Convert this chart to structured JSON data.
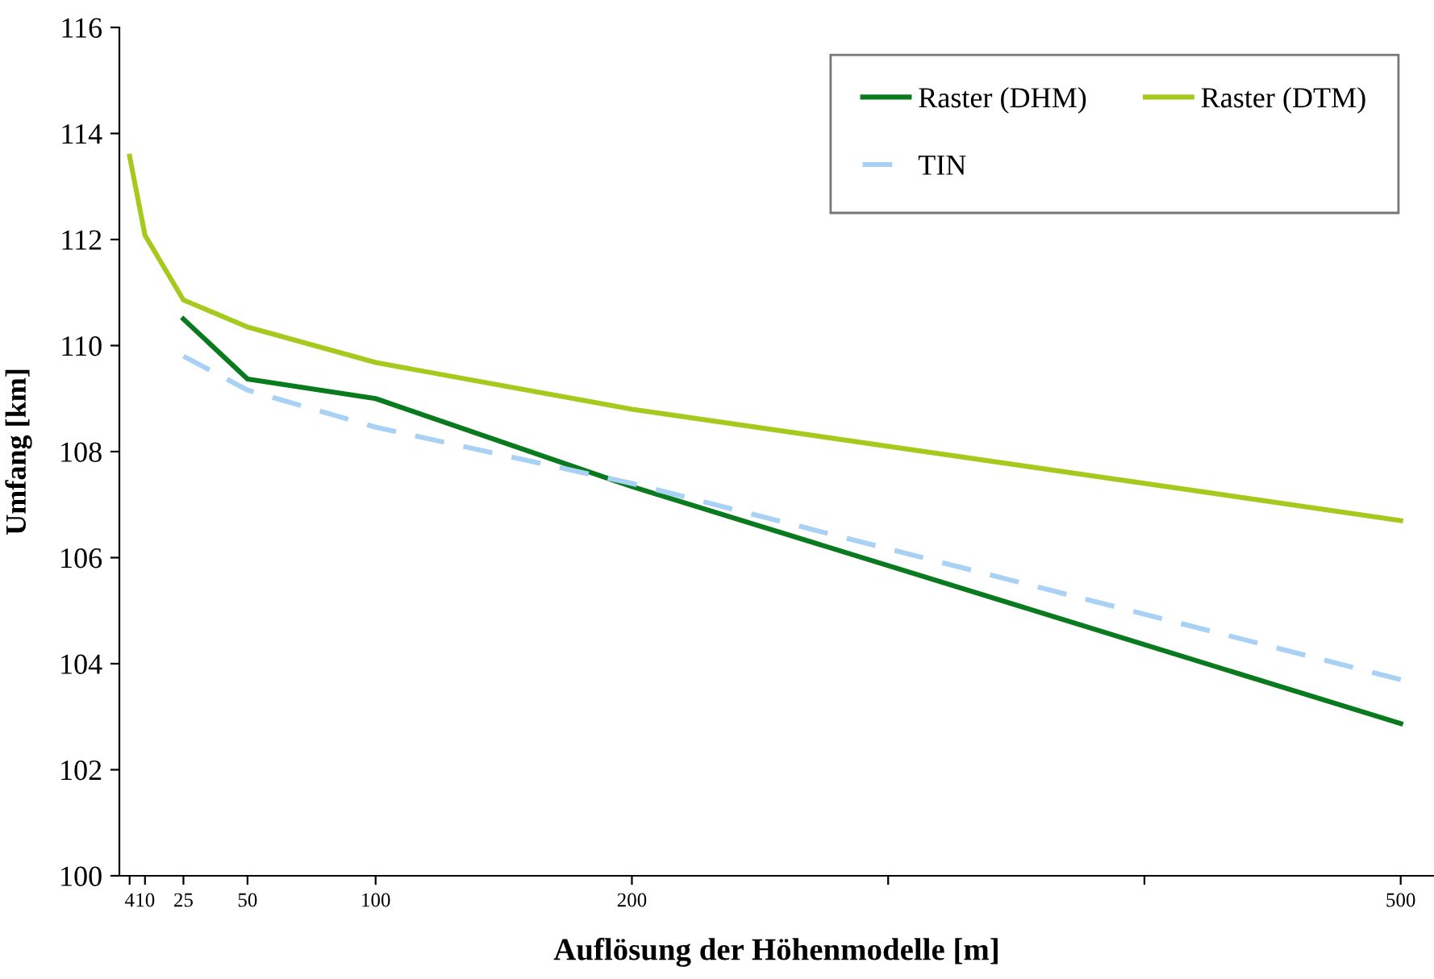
{
  "chart_data": {
    "type": "line",
    "xlabel": "Auflösung der Höhenmodelle [m]",
    "ylabel": "Umfang [km]",
    "xlim": [
      0,
      513
    ],
    "xticks": [
      4,
      10,
      25,
      50,
      100,
      200,
      {
        "value": 300,
        "label": null
      },
      {
        "value": 400,
        "label": null
      },
      500
    ],
    "ylim": [
      100,
      116
    ],
    "yticks": [
      100,
      102,
      104,
      106,
      108,
      110,
      112,
      114,
      116
    ],
    "grid": false,
    "legend": "top right",
    "marker": "none",
    "series": [
      {
        "name": "Raster (DHM)",
        "color": "#0a7a1e",
        "x": [
          25,
          50,
          100,
          200,
          500
        ],
        "values": [
          110.5,
          109.37,
          109.0,
          107.34,
          102.87
        ]
      },
      {
        "name": "Raster (DTM)",
        "color": "#a6c91e",
        "x": [
          4,
          10,
          25,
          50,
          100,
          200,
          500
        ],
        "values": [
          113.57,
          112.08,
          110.86,
          110.35,
          109.68,
          108.8,
          106.7
        ]
      },
      {
        "name": "TIN",
        "color": "#a9d1f5",
        "line_style": "dashed",
        "x": [
          25,
          50,
          100,
          200,
          500
        ],
        "values": [
          109.8,
          109.16,
          108.46,
          107.4,
          103.7
        ]
      }
    ]
  }
}
